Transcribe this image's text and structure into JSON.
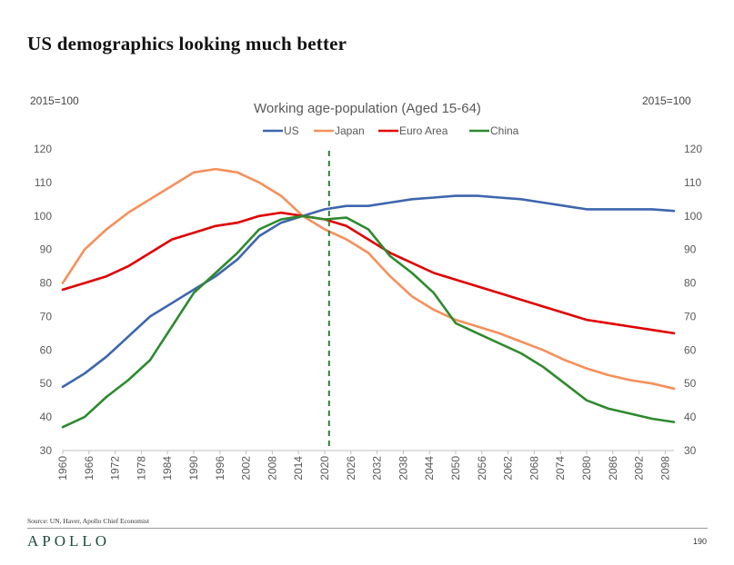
{
  "page": {
    "headline": "US demographics looking much better",
    "unit_left": "2015=100",
    "unit_right": "2015=100",
    "source": "Source: UN, Haver, Apollo Chief Economist",
    "logo": "APOLLO",
    "page_number": "190"
  },
  "colors": {
    "US": "#3d66ad",
    "Japan": "#f4905a",
    "Euro Area": "#e00000",
    "China": "#2e8a2e",
    "vline": "#2e7d32",
    "axis": "#bfbfbf",
    "text": "#595959"
  },
  "chart_data": {
    "type": "line",
    "title": "Working age-population (Aged 15-64)",
    "xlabel": "",
    "ylabel": "2015=100",
    "ylim": [
      30,
      120
    ],
    "yticks": [
      30,
      40,
      50,
      60,
      70,
      80,
      90,
      100,
      110,
      120
    ],
    "xlim": [
      1960,
      2100
    ],
    "xtick_labels": [
      "1960",
      "1966",
      "1972",
      "1978",
      "1984",
      "1990",
      "1996",
      "2002",
      "2008",
      "2014",
      "2020",
      "2026",
      "2032",
      "2038",
      "2044",
      "2050",
      "2056",
      "2062",
      "2068",
      "2074",
      "2080",
      "2086",
      "2092",
      "2098"
    ],
    "vertical_line_year": 2021,
    "legend_position": "top-center",
    "series": [
      {
        "name": "US",
        "x": [
          1960,
          1965,
          1970,
          1975,
          1980,
          1985,
          1990,
          1995,
          2000,
          2005,
          2010,
          2015,
          2020,
          2025,
          2030,
          2035,
          2040,
          2045,
          2050,
          2055,
          2060,
          2065,
          2070,
          2075,
          2080,
          2085,
          2090,
          2095,
          2100
        ],
        "y": [
          49,
          53,
          58,
          64,
          70,
          74,
          78,
          82,
          87,
          94,
          98,
          100,
          102,
          103,
          103,
          104,
          105,
          105.5,
          106,
          106,
          105.5,
          105,
          104,
          103,
          102,
          102,
          102,
          102,
          101.5
        ]
      },
      {
        "name": "Japan",
        "x": [
          1960,
          1965,
          1970,
          1975,
          1980,
          1985,
          1990,
          1995,
          2000,
          2005,
          2010,
          2015,
          2020,
          2025,
          2030,
          2035,
          2040,
          2045,
          2050,
          2055,
          2060,
          2065,
          2070,
          2075,
          2080,
          2085,
          2090,
          2095,
          2100
        ],
        "y": [
          80,
          90,
          96,
          101,
          105,
          109,
          113,
          114,
          113,
          110,
          106,
          100,
          96,
          93,
          89,
          82,
          76,
          72,
          69,
          67,
          65,
          62.5,
          60,
          57,
          54.5,
          52.5,
          51,
          50,
          48.5
        ]
      },
      {
        "name": "Euro Area",
        "x": [
          1960,
          1965,
          1970,
          1975,
          1980,
          1985,
          1990,
          1995,
          2000,
          2005,
          2010,
          2015,
          2020,
          2025,
          2030,
          2035,
          2040,
          2045,
          2050,
          2055,
          2060,
          2065,
          2070,
          2075,
          2080,
          2085,
          2090,
          2095,
          2100
        ],
        "y": [
          78,
          80,
          82,
          85,
          89,
          93,
          95,
          97,
          98,
          100,
          101,
          100,
          99,
          97,
          93,
          89,
          86,
          83,
          81,
          79,
          77,
          75,
          73,
          71,
          69,
          68,
          67,
          66,
          65
        ]
      },
      {
        "name": "China",
        "x": [
          1960,
          1965,
          1970,
          1975,
          1980,
          1985,
          1990,
          1995,
          2000,
          2005,
          2010,
          2015,
          2020,
          2025,
          2030,
          2035,
          2040,
          2045,
          2050,
          2055,
          2060,
          2065,
          2070,
          2075,
          2080,
          2085,
          2090,
          2095,
          2100
        ],
        "y": [
          37,
          40,
          46,
          51,
          57,
          67,
          77,
          83,
          89,
          96,
          99,
          100,
          99,
          99.5,
          96,
          88,
          83,
          77,
          68,
          65,
          62,
          59,
          55,
          50,
          45,
          42.5,
          41,
          39.5,
          38.5
        ]
      }
    ]
  }
}
